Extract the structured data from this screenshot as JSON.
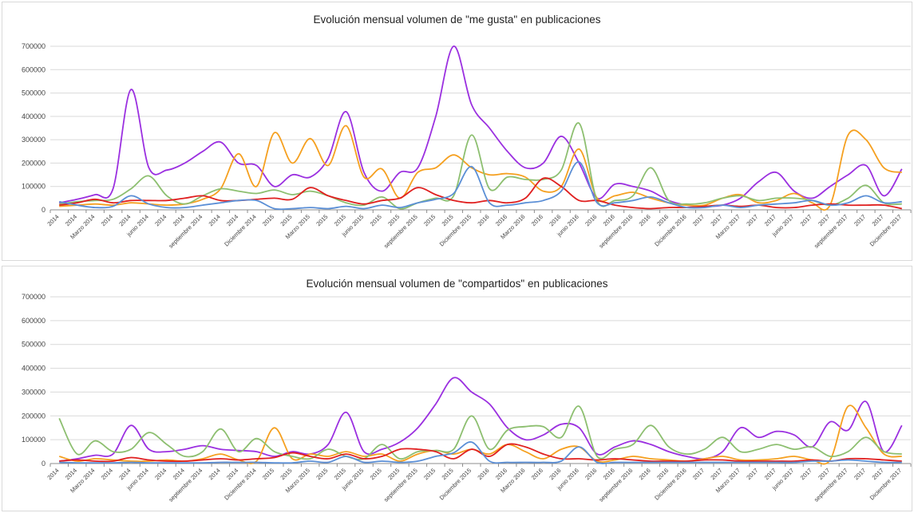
{
  "chart_data": [
    {
      "type": "line",
      "title": "Evolución mensual volumen de \"me gusta\" en publicaciones",
      "xlabel": "",
      "ylabel": "",
      "ylim": [
        0,
        700000
      ],
      "yticks": [
        "0",
        "100000",
        "200000",
        "300000",
        "400000",
        "500000",
        "600000",
        "700000"
      ],
      "grid": true,
      "categories": [
        "2014",
        "2014",
        "Marzo 2014",
        "2014",
        "2014",
        "junio 2014",
        "2014",
        "2014",
        "septiembre 2014",
        "2014",
        "2014",
        "Diciembre 2014",
        "2015",
        "2015",
        "Marzo 2015",
        "2015",
        "2015",
        "junio 2015",
        "2015",
        "2015",
        "septiembre 2015",
        "2015",
        "2015",
        "Diciembre 2015",
        "2016",
        "2016",
        "Marzo 2016",
        "2016",
        "2016",
        "junio 2016",
        "2016",
        "2016",
        "septiembre 2016",
        "2016",
        "2016",
        "Diciembre 2016",
        "2017",
        "2017",
        "Marzo 2017",
        "2017",
        "2017",
        "junio 2017",
        "2017",
        "2017",
        "septiembre 2017",
        "2017",
        "2017",
        "Diciembre 2017"
      ],
      "series": [
        {
          "color": "#9b30e0",
          "values": [
            30000,
            45000,
            65000,
            90000,
            515000,
            180000,
            170000,
            200000,
            250000,
            290000,
            200000,
            190000,
            100000,
            150000,
            140000,
            220000,
            420000,
            160000,
            80000,
            160000,
            180000,
            400000,
            700000,
            450000,
            350000,
            250000,
            180000,
            200000,
            315000,
            200000,
            50000,
            110000,
            100000,
            80000,
            40000,
            20000,
            15000,
            20000,
            50000,
            120000,
            160000,
            80000,
            50000,
            100000,
            150000,
            190000,
            60000,
            175000
          ]
        },
        {
          "color": "#f5a020",
          "values": [
            15000,
            20000,
            25000,
            20000,
            30000,
            25000,
            20000,
            25000,
            45000,
            90000,
            240000,
            100000,
            330000,
            200000,
            305000,
            190000,
            360000,
            140000,
            175000,
            50000,
            160000,
            180000,
            235000,
            180000,
            150000,
            155000,
            140000,
            80000,
            100000,
            260000,
            50000,
            60000,
            75000,
            50000,
            30000,
            20000,
            20000,
            50000,
            65000,
            30000,
            40000,
            70000,
            30000,
            20000,
            320000,
            300000,
            180000,
            160000
          ]
        },
        {
          "color": "#8dbf70",
          "values": [
            25000,
            35000,
            40000,
            45000,
            90000,
            145000,
            60000,
            25000,
            60000,
            90000,
            80000,
            70000,
            85000,
            65000,
            80000,
            60000,
            30000,
            20000,
            55000,
            5000,
            30000,
            50000,
            60000,
            320000,
            90000,
            140000,
            130000,
            130000,
            170000,
            370000,
            40000,
            40000,
            60000,
            180000,
            40000,
            25000,
            30000,
            50000,
            60000,
            40000,
            50000,
            50000,
            40000,
            20000,
            50000,
            105000,
            30000,
            25000
          ]
        },
        {
          "color": "#e02020",
          "values": [
            20000,
            30000,
            45000,
            30000,
            40000,
            40000,
            40000,
            50000,
            60000,
            40000,
            40000,
            45000,
            50000,
            45000,
            95000,
            60000,
            40000,
            25000,
            40000,
            50000,
            95000,
            65000,
            40000,
            30000,
            40000,
            30000,
            50000,
            135000,
            100000,
            40000,
            40000,
            20000,
            10000,
            5000,
            10000,
            10000,
            15000,
            20000,
            15000,
            20000,
            10000,
            10000,
            20000,
            25000,
            20000,
            20000,
            20000,
            5000
          ]
        },
        {
          "color": "#5b8fd6",
          "values": [
            35000,
            20000,
            10000,
            15000,
            60000,
            25000,
            10000,
            10000,
            20000,
            30000,
            40000,
            40000,
            5000,
            5000,
            10000,
            5000,
            15000,
            5000,
            20000,
            10000,
            30000,
            45000,
            70000,
            185000,
            30000,
            20000,
            30000,
            40000,
            80000,
            205000,
            30000,
            30000,
            40000,
            55000,
            30000,
            10000,
            10000,
            20000,
            10000,
            20000,
            25000,
            30000,
            40000,
            20000,
            30000,
            60000,
            30000,
            35000
          ]
        }
      ]
    },
    {
      "type": "line",
      "title": "Evolución mensual volumen de \"compartidos\" en publicaciones",
      "xlabel": "",
      "ylabel": "",
      "ylim": [
        0,
        700000
      ],
      "yticks": [
        "0",
        "100000",
        "200000",
        "300000",
        "400000",
        "500000",
        "600000",
        "700000"
      ],
      "grid": true,
      "categories": [
        "2014",
        "2014",
        "Marzo 2014",
        "2014",
        "2014",
        "junio 2014",
        "2014",
        "2014",
        "septiembre 2014",
        "2014",
        "2014",
        "Diciembre 2014",
        "2015",
        "2015",
        "Marzo 2015",
        "2015",
        "2015",
        "junio 2015",
        "2015",
        "2015",
        "septiembre 2015",
        "2015",
        "2015",
        "Diciembre 2015",
        "2016",
        "2016",
        "Marzo 2016",
        "2016",
        "2016",
        "junio 2016",
        "2016",
        "2016",
        "septiembre 2016",
        "2016",
        "2016",
        "Diciembre 2016",
        "2017",
        "2017",
        "Marzo 2017",
        "2017",
        "2017",
        "junio 2017",
        "2017",
        "2017",
        "septiembre 2017",
        "2017",
        "2017",
        "Diciembre 2017"
      ],
      "series": [
        {
          "color": "#9b30e0",
          "values": [
            10000,
            20000,
            35000,
            40000,
            160000,
            60000,
            50000,
            60000,
            75000,
            60000,
            55000,
            50000,
            30000,
            50000,
            40000,
            80000,
            215000,
            50000,
            60000,
            90000,
            150000,
            250000,
            360000,
            300000,
            250000,
            150000,
            100000,
            120000,
            165000,
            150000,
            40000,
            70000,
            95000,
            80000,
            50000,
            30000,
            20000,
            50000,
            150000,
            110000,
            135000,
            120000,
            70000,
            175000,
            140000,
            260000,
            50000,
            160000
          ]
        },
        {
          "color": "#f5a020",
          "values": [
            30000,
            10000,
            20000,
            15000,
            10000,
            10000,
            15000,
            10000,
            20000,
            40000,
            15000,
            10000,
            150000,
            20000,
            40000,
            30000,
            50000,
            30000,
            40000,
            10000,
            40000,
            55000,
            40000,
            60000,
            40000,
            80000,
            50000,
            20000,
            60000,
            70000,
            10000,
            15000,
            30000,
            20000,
            15000,
            10000,
            20000,
            30000,
            15000,
            15000,
            20000,
            30000,
            15000,
            15000,
            240000,
            150000,
            40000,
            30000
          ]
        },
        {
          "color": "#8dbf70",
          "values": [
            190000,
            40000,
            95000,
            50000,
            60000,
            130000,
            80000,
            30000,
            50000,
            145000,
            50000,
            105000,
            50000,
            30000,
            20000,
            60000,
            30000,
            20000,
            80000,
            20000,
            50000,
            55000,
            60000,
            200000,
            60000,
            140000,
            155000,
            155000,
            110000,
            240000,
            30000,
            60000,
            80000,
            160000,
            70000,
            40000,
            60000,
            110000,
            50000,
            60000,
            80000,
            60000,
            70000,
            30000,
            50000,
            110000,
            50000,
            40000
          ]
        },
        {
          "color": "#e02020",
          "values": [
            10000,
            15000,
            10000,
            10000,
            25000,
            15000,
            10000,
            10000,
            15000,
            20000,
            15000,
            20000,
            25000,
            45000,
            30000,
            20000,
            40000,
            20000,
            30000,
            60000,
            60000,
            50000,
            20000,
            60000,
            30000,
            80000,
            70000,
            40000,
            20000,
            20000,
            15000,
            20000,
            15000,
            10000,
            10000,
            10000,
            15000,
            15000,
            10000,
            10000,
            10000,
            10000,
            15000,
            10000,
            20000,
            20000,
            15000,
            10000
          ]
        },
        {
          "color": "#5b8fd6",
          "values": [
            5000,
            3000,
            3000,
            3000,
            5000,
            3000,
            3000,
            3000,
            3000,
            5000,
            5000,
            5000,
            3000,
            3000,
            10000,
            5000,
            30000,
            5000,
            10000,
            5000,
            10000,
            30000,
            45000,
            90000,
            10000,
            5000,
            5000,
            5000,
            10000,
            70000,
            5000,
            5000,
            5000,
            5000,
            5000,
            5000,
            5000,
            5000,
            5000,
            5000,
            5000,
            5000,
            10000,
            10000,
            15000,
            10000,
            5000,
            5000
          ]
        }
      ]
    }
  ]
}
